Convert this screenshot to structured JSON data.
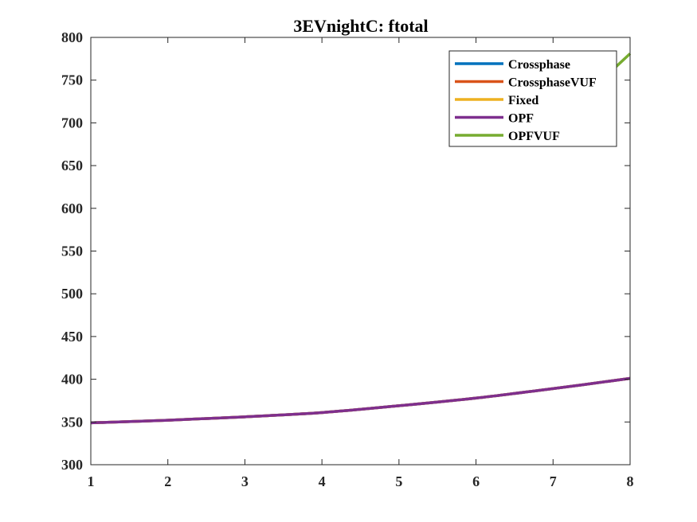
{
  "chart_data": {
    "type": "line",
    "title": "3EVnightC: ftotal",
    "xlabel": "",
    "ylabel": "",
    "xlim": [
      1,
      8
    ],
    "ylim": [
      300,
      800
    ],
    "xticks": [
      1,
      2,
      3,
      4,
      5,
      6,
      7,
      8
    ],
    "yticks": [
      300,
      350,
      400,
      450,
      500,
      550,
      600,
      650,
      700,
      750,
      800
    ],
    "x": [
      1,
      2,
      3,
      4,
      5,
      6,
      7,
      8
    ],
    "legend_position": "top-right",
    "series": [
      {
        "name": "Crossphase",
        "color": "#0072BD",
        "values": [
          349,
          352,
          356,
          361,
          369,
          378,
          389,
          401
        ]
      },
      {
        "name": "CrossphaseVUF",
        "color": "#D95319",
        "values": [
          349,
          352,
          356,
          361,
          369,
          378,
          389,
          401
        ]
      },
      {
        "name": "Fixed",
        "color": "#EDB120",
        "values": [
          349,
          352,
          356,
          361,
          369,
          378,
          389,
          401
        ]
      },
      {
        "name": "OPF",
        "color": "#7E2F8E",
        "values": [
          349,
          352,
          356,
          361,
          369,
          378,
          389,
          401
        ]
      },
      {
        "name": "OPFVUF",
        "color": "#77AC30",
        "values": [
          null,
          null,
          null,
          null,
          null,
          null,
          null,
          781
        ],
        "segment_start": [
          7.75,
          760
        ]
      }
    ]
  }
}
